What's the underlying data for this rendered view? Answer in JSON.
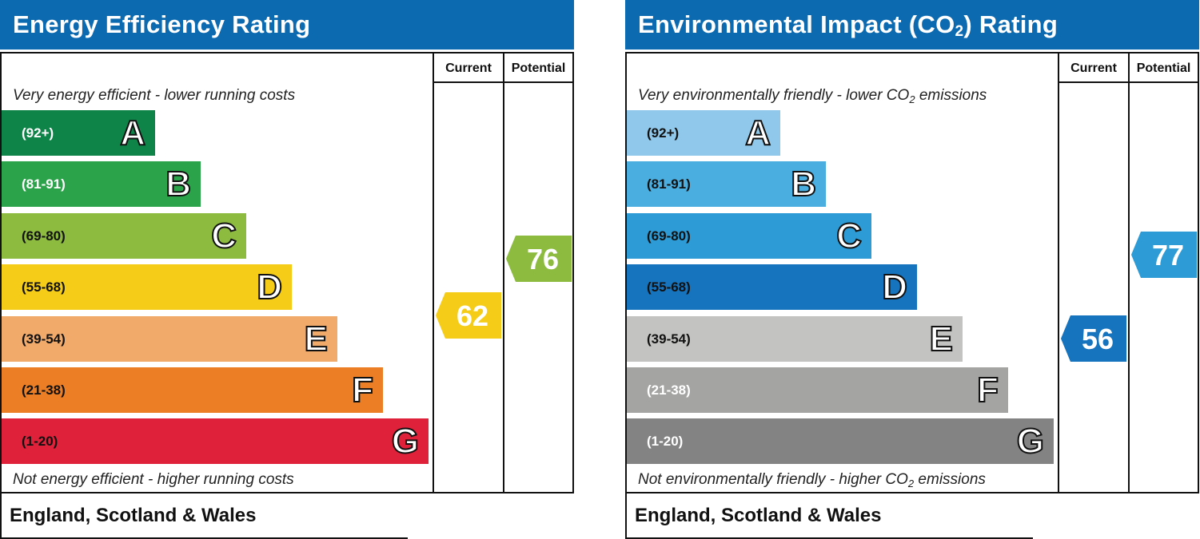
{
  "charts": [
    {
      "title": "Energy Efficiency Rating",
      "col_current": "Current",
      "col_potential": "Potential",
      "top_note": "Very energy efficient - lower running costs",
      "bottom_note": "Not energy efficient - higher running costs",
      "footer": "England, Scotland & Wales"
    },
    {
      "title_pre": "Environmental Impact (CO",
      "title_sub": "2",
      "title_post": ") Rating",
      "col_current": "Current",
      "col_potential": "Potential",
      "top_note_pre": "Very environmentally friendly - lower CO",
      "top_note_sub": "2",
      "top_note_post": " emissions",
      "bottom_note_pre": "Not environmentally friendly - higher CO",
      "bottom_note_sub": "2",
      "bottom_note_post": " emissions",
      "footer": "England, Scotland & Wales"
    }
  ],
  "chart_data": [
    {
      "type": "bar",
      "title": "Energy Efficiency Rating",
      "bands": [
        {
          "letter": "A",
          "range": "(92+)",
          "min": 92,
          "max": 100,
          "color": "#0e8449",
          "text_color": "#ffffff"
        },
        {
          "letter": "B",
          "range": "(81-91)",
          "min": 81,
          "max": 91,
          "color": "#2aa34a",
          "text_color": "#ffffff"
        },
        {
          "letter": "C",
          "range": "(69-80)",
          "min": 69,
          "max": 80,
          "color": "#8cbb40",
          "text_color": "#111111"
        },
        {
          "letter": "D",
          "range": "(55-68)",
          "min": 55,
          "max": 68,
          "color": "#f5cc18",
          "text_color": "#111111"
        },
        {
          "letter": "E",
          "range": "(39-54)",
          "min": 39,
          "max": 54,
          "color": "#f2aa6b",
          "text_color": "#111111"
        },
        {
          "letter": "F",
          "range": "(21-38)",
          "min": 21,
          "max": 38,
          "color": "#ec7f26",
          "text_color": "#111111"
        },
        {
          "letter": "G",
          "range": "(1-20)",
          "min": 1,
          "max": 20,
          "color": "#e0213a",
          "text_color": "#111111"
        }
      ],
      "current": {
        "value": 62,
        "band": "D",
        "color": "#f5cc18"
      },
      "potential": {
        "value": 76,
        "band": "C",
        "color": "#8cbb40"
      }
    },
    {
      "type": "bar",
      "title": "Environmental Impact (CO2) Rating",
      "bands": [
        {
          "letter": "A",
          "range": "(92+)",
          "min": 92,
          "max": 100,
          "color": "#8fc8ea",
          "text_color": "#111111"
        },
        {
          "letter": "B",
          "range": "(81-91)",
          "min": 81,
          "max": 91,
          "color": "#4aaee0",
          "text_color": "#111111"
        },
        {
          "letter": "C",
          "range": "(69-80)",
          "min": 69,
          "max": 80,
          "color": "#2c9bd6",
          "text_color": "#111111"
        },
        {
          "letter": "D",
          "range": "(55-68)",
          "min": 55,
          "max": 68,
          "color": "#1673be",
          "text_color": "#111111"
        },
        {
          "letter": "E",
          "range": "(39-54)",
          "min": 39,
          "max": 54,
          "color": "#c3c3c1",
          "text_color": "#111111"
        },
        {
          "letter": "F",
          "range": "(21-38)",
          "min": 21,
          "max": 38,
          "color": "#a4a4a3",
          "text_color": "#ffffff"
        },
        {
          "letter": "G",
          "range": "(1-20)",
          "min": 1,
          "max": 20,
          "color": "#838383",
          "text_color": "#ffffff"
        }
      ],
      "current": {
        "value": 56,
        "band": "D",
        "color": "#1673be"
      },
      "potential": {
        "value": 77,
        "band": "C",
        "color": "#2c9bd6"
      }
    }
  ]
}
